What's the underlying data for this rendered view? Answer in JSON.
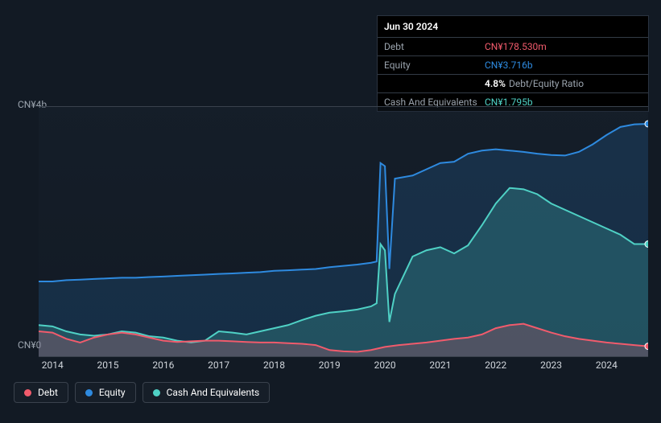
{
  "tooltip": {
    "date": "Jun 30 2024",
    "rows": {
      "debt_label": "Debt",
      "debt_value": "CN¥178.530m",
      "equity_label": "Equity",
      "equity_value": "CN¥3.716b",
      "ratio_pct": "4.8%",
      "ratio_label": "Debt/Equity Ratio",
      "cash_label": "Cash And Equivalents",
      "cash_value": "CN¥1.795b"
    }
  },
  "chart": {
    "type": "area",
    "y_top_label": "CN¥4b",
    "y_bottom_label": "CN¥0",
    "ylim": [
      0,
      4.0
    ],
    "xlim": [
      2013.75,
      2024.75
    ],
    "background_color": "#121a24",
    "grid_color": "#3a424d",
    "x_ticks": [
      2014,
      2015,
      2016,
      2017,
      2018,
      2019,
      2020,
      2021,
      2022,
      2023,
      2024
    ],
    "series": [
      {
        "name": "Equity",
        "color": "#2e8adf",
        "fill_opacity": 0.18,
        "line_width": 2,
        "data": [
          [
            2013.75,
            1.2
          ],
          [
            2014,
            1.2
          ],
          [
            2014.25,
            1.22
          ],
          [
            2014.5,
            1.23
          ],
          [
            2014.75,
            1.24
          ],
          [
            2015,
            1.25
          ],
          [
            2015.25,
            1.26
          ],
          [
            2015.5,
            1.26
          ],
          [
            2015.75,
            1.27
          ],
          [
            2016,
            1.28
          ],
          [
            2016.25,
            1.29
          ],
          [
            2016.5,
            1.3
          ],
          [
            2016.75,
            1.31
          ],
          [
            2017,
            1.32
          ],
          [
            2017.25,
            1.33
          ],
          [
            2017.5,
            1.34
          ],
          [
            2017.75,
            1.35
          ],
          [
            2018,
            1.37
          ],
          [
            2018.25,
            1.38
          ],
          [
            2018.5,
            1.39
          ],
          [
            2018.75,
            1.4
          ],
          [
            2019,
            1.43
          ],
          [
            2019.25,
            1.45
          ],
          [
            2019.5,
            1.47
          ],
          [
            2019.75,
            1.5
          ],
          [
            2019.85,
            1.52
          ],
          [
            2019.92,
            3.1
          ],
          [
            2020,
            3.05
          ],
          [
            2020.08,
            1.4
          ],
          [
            2020.18,
            2.85
          ],
          [
            2020.5,
            2.9
          ],
          [
            2020.75,
            3.0
          ],
          [
            2021,
            3.1
          ],
          [
            2021.25,
            3.12
          ],
          [
            2021.5,
            3.25
          ],
          [
            2021.75,
            3.3
          ],
          [
            2022,
            3.32
          ],
          [
            2022.25,
            3.3
          ],
          [
            2022.5,
            3.28
          ],
          [
            2022.75,
            3.25
          ],
          [
            2023,
            3.23
          ],
          [
            2023.25,
            3.22
          ],
          [
            2023.5,
            3.28
          ],
          [
            2023.75,
            3.4
          ],
          [
            2024,
            3.55
          ],
          [
            2024.25,
            3.68
          ],
          [
            2024.5,
            3.72
          ],
          [
            2024.75,
            3.73
          ]
        ]
      },
      {
        "name": "Cash And Equivalents",
        "color": "#4fd1c5",
        "fill_opacity": 0.22,
        "line_width": 2,
        "data": [
          [
            2013.75,
            0.5
          ],
          [
            2014,
            0.48
          ],
          [
            2014.25,
            0.4
          ],
          [
            2014.5,
            0.35
          ],
          [
            2014.75,
            0.33
          ],
          [
            2015,
            0.35
          ],
          [
            2015.25,
            0.4
          ],
          [
            2015.5,
            0.38
          ],
          [
            2015.75,
            0.32
          ],
          [
            2016,
            0.3
          ],
          [
            2016.25,
            0.25
          ],
          [
            2016.5,
            0.22
          ],
          [
            2016.75,
            0.25
          ],
          [
            2017,
            0.4
          ],
          [
            2017.25,
            0.38
          ],
          [
            2017.5,
            0.35
          ],
          [
            2017.75,
            0.4
          ],
          [
            2018,
            0.45
          ],
          [
            2018.25,
            0.5
          ],
          [
            2018.5,
            0.58
          ],
          [
            2018.75,
            0.65
          ],
          [
            2019,
            0.7
          ],
          [
            2019.25,
            0.72
          ],
          [
            2019.5,
            0.75
          ],
          [
            2019.75,
            0.8
          ],
          [
            2019.85,
            0.85
          ],
          [
            2019.92,
            1.8
          ],
          [
            2020,
            1.7
          ],
          [
            2020.08,
            0.55
          ],
          [
            2020.18,
            1.0
          ],
          [
            2020.5,
            1.6
          ],
          [
            2020.75,
            1.7
          ],
          [
            2021,
            1.75
          ],
          [
            2021.25,
            1.65
          ],
          [
            2021.5,
            1.78
          ],
          [
            2021.75,
            2.1
          ],
          [
            2022,
            2.45
          ],
          [
            2022.25,
            2.7
          ],
          [
            2022.5,
            2.68
          ],
          [
            2022.75,
            2.6
          ],
          [
            2023,
            2.45
          ],
          [
            2023.25,
            2.35
          ],
          [
            2023.5,
            2.25
          ],
          [
            2023.75,
            2.15
          ],
          [
            2024,
            2.05
          ],
          [
            2024.25,
            1.95
          ],
          [
            2024.5,
            1.8
          ],
          [
            2024.75,
            1.8
          ]
        ]
      },
      {
        "name": "Debt",
        "color": "#f15b6c",
        "fill_opacity": 0.22,
        "line_width": 2,
        "data": [
          [
            2013.75,
            0.4
          ],
          [
            2014,
            0.38
          ],
          [
            2014.25,
            0.28
          ],
          [
            2014.5,
            0.22
          ],
          [
            2014.75,
            0.3
          ],
          [
            2015,
            0.35
          ],
          [
            2015.25,
            0.38
          ],
          [
            2015.5,
            0.35
          ],
          [
            2015.75,
            0.3
          ],
          [
            2016,
            0.25
          ],
          [
            2016.25,
            0.23
          ],
          [
            2016.5,
            0.24
          ],
          [
            2016.75,
            0.25
          ],
          [
            2017,
            0.25
          ],
          [
            2017.25,
            0.24
          ],
          [
            2017.5,
            0.23
          ],
          [
            2017.75,
            0.22
          ],
          [
            2018,
            0.22
          ],
          [
            2018.25,
            0.21
          ],
          [
            2018.5,
            0.2
          ],
          [
            2018.75,
            0.18
          ],
          [
            2019,
            0.1
          ],
          [
            2019.25,
            0.08
          ],
          [
            2019.5,
            0.07
          ],
          [
            2019.75,
            0.1
          ],
          [
            2020,
            0.15
          ],
          [
            2020.25,
            0.18
          ],
          [
            2020.5,
            0.2
          ],
          [
            2020.75,
            0.22
          ],
          [
            2021,
            0.25
          ],
          [
            2021.25,
            0.28
          ],
          [
            2021.5,
            0.3
          ],
          [
            2021.75,
            0.35
          ],
          [
            2022,
            0.45
          ],
          [
            2022.25,
            0.5
          ],
          [
            2022.5,
            0.52
          ],
          [
            2022.75,
            0.45
          ],
          [
            2023,
            0.38
          ],
          [
            2023.25,
            0.32
          ],
          [
            2023.5,
            0.28
          ],
          [
            2023.75,
            0.25
          ],
          [
            2024,
            0.22
          ],
          [
            2024.25,
            0.2
          ],
          [
            2024.5,
            0.18
          ],
          [
            2024.75,
            0.16
          ]
        ]
      }
    ],
    "markers": [
      {
        "series": "Equity",
        "x": 2024.75,
        "y": 3.73,
        "color": "#2e8adf"
      },
      {
        "series": "Cash",
        "x": 2024.75,
        "y": 1.8,
        "color": "#4fd1c5"
      },
      {
        "series": "Debt",
        "x": 2024.75,
        "y": 0.16,
        "color": "#f15b6c"
      }
    ]
  },
  "legend": [
    {
      "label": "Debt",
      "color": "#f15b6c"
    },
    {
      "label": "Equity",
      "color": "#2e8adf"
    },
    {
      "label": "Cash And Equivalents",
      "color": "#4fd1c5"
    }
  ]
}
